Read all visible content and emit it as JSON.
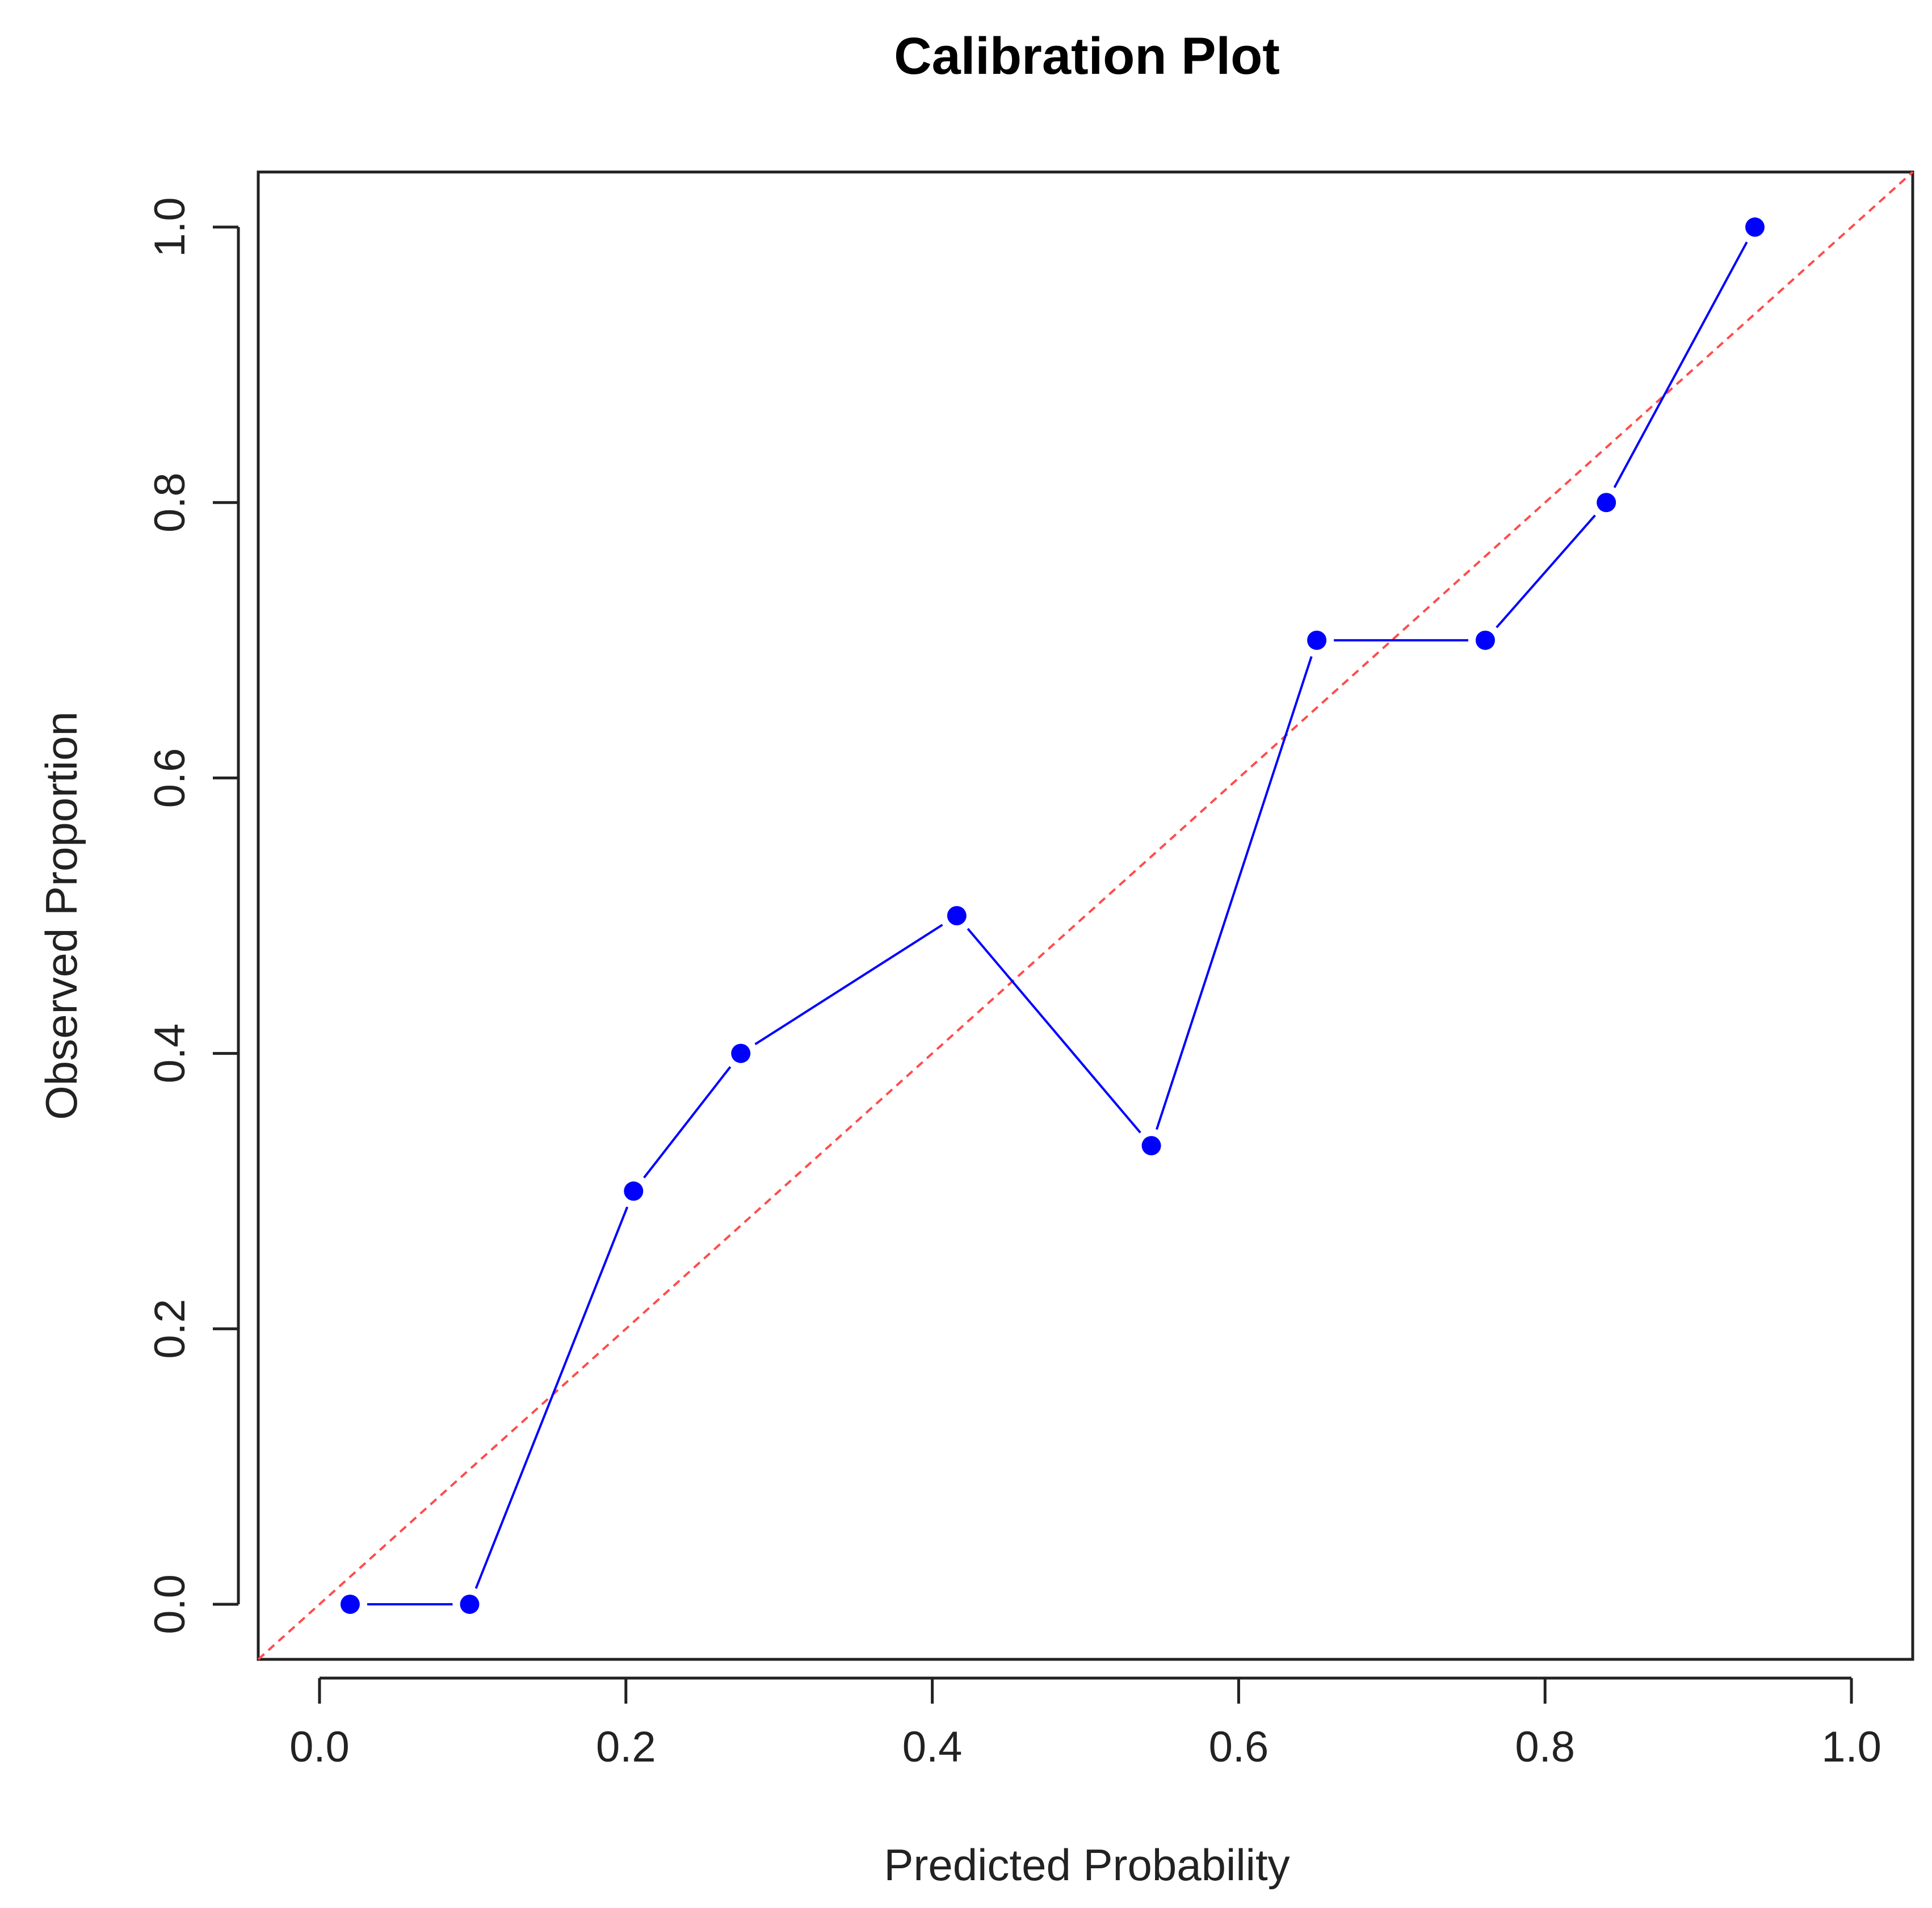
{
  "chart_data": {
    "type": "line",
    "title": "Calibration Plot",
    "xlabel": "Predicted Probability",
    "ylabel": "Observed Proportion",
    "xlim": [
      -0.04,
      1.04
    ],
    "ylim": [
      -0.04,
      1.04
    ],
    "x_ticks": [
      "0.0",
      "0.2",
      "0.4",
      "0.6",
      "0.8",
      "1.0"
    ],
    "y_ticks": [
      "0.0",
      "0.2",
      "0.4",
      "0.6",
      "0.8",
      "1.0"
    ],
    "grid": false,
    "series": [
      {
        "x": [
          0.02,
          0.098,
          0.205,
          0.275,
          0.416,
          0.543,
          0.651,
          0.761,
          0.84,
          0.937
        ],
        "y": [
          0.0,
          0.0,
          0.3,
          0.4,
          0.5,
          0.333,
          0.7,
          0.7,
          0.8,
          1.0
        ],
        "color": "#0000ff",
        "style": "points-and-line"
      }
    ],
    "reference_line": {
      "x": [
        -0.04,
        1.04
      ],
      "y": [
        -0.04,
        1.04
      ],
      "color": "#ff4c4c",
      "style": "dashed"
    }
  }
}
